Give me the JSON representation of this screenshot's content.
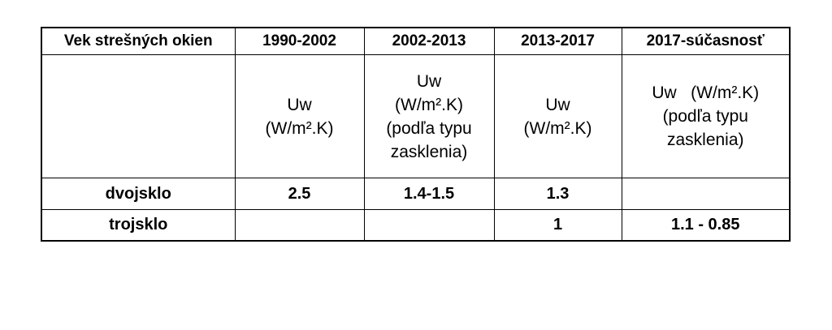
{
  "table": {
    "header": [
      "Vek strešných okien",
      "1990-2002",
      "2002-2013",
      "2013-2017",
      "2017-súčasnosť"
    ],
    "unit_row": [
      null,
      [
        "Uw",
        "(W/m².K)"
      ],
      [
        "Uw",
        "(W/m².K)",
        "(podľa typu",
        "zasklenia)"
      ],
      [
        "Uw",
        "(W/m².K)"
      ],
      [
        "Uw   (W/m².K)",
        "(podľa typu",
        "zasklenia)"
      ]
    ],
    "rows": [
      [
        "dvojsklo",
        "2.5",
        "1.4-1.5",
        "1.3",
        null
      ],
      [
        "trojsklo",
        null,
        null,
        "1",
        "1.1 - 0.85"
      ]
    ]
  }
}
